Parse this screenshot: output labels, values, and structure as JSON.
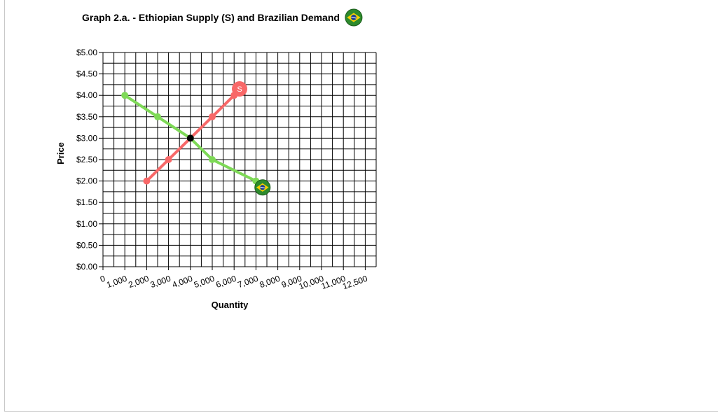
{
  "chart_data": {
    "type": "line",
    "title": "Graph 2.a. - Ethiopian Supply (S) and Brazilian Demand",
    "xlabel": "Quantity",
    "ylabel": "Price",
    "x_ticks": [
      "0",
      "1,000",
      "2,000",
      "3,000",
      "4,000",
      "5,000",
      "6,000",
      "7,000",
      "8,000",
      "9,000",
      "10,000",
      "11,000",
      "12,500"
    ],
    "y_ticks": [
      "$0.00",
      "$0.50",
      "$1.00",
      "$1.50",
      "$2.00",
      "$2.50",
      "$3.00",
      "$3.50",
      "$4.00",
      "$4.50",
      "$5.00"
    ],
    "xlim": [
      0,
      12500
    ],
    "ylim": [
      0,
      5
    ],
    "grid": true,
    "series": [
      {
        "label": "S",
        "color": "#f86868",
        "points": [
          [
            2000,
            2.0
          ],
          [
            3000,
            2.5
          ],
          [
            4000,
            3.0
          ],
          [
            5000,
            3.5
          ],
          [
            6000,
            4.0
          ]
        ],
        "end_marker": {
          "x": 6250,
          "y": 4.15,
          "label": "S"
        }
      },
      {
        "color": "#7ed957",
        "points": [
          [
            1000,
            4.0
          ],
          [
            2500,
            3.5
          ],
          [
            4000,
            3.0
          ],
          [
            5000,
            2.5
          ],
          [
            7000,
            2.0
          ]
        ],
        "end_marker": {
          "x": 7300,
          "y": 1.85,
          "icon": "brazil-flag-icon"
        }
      }
    ],
    "equilibrium": {
      "x": 4000,
      "y": 3.0,
      "color": "#000000"
    },
    "title_icon": "brazil-flag-icon"
  }
}
